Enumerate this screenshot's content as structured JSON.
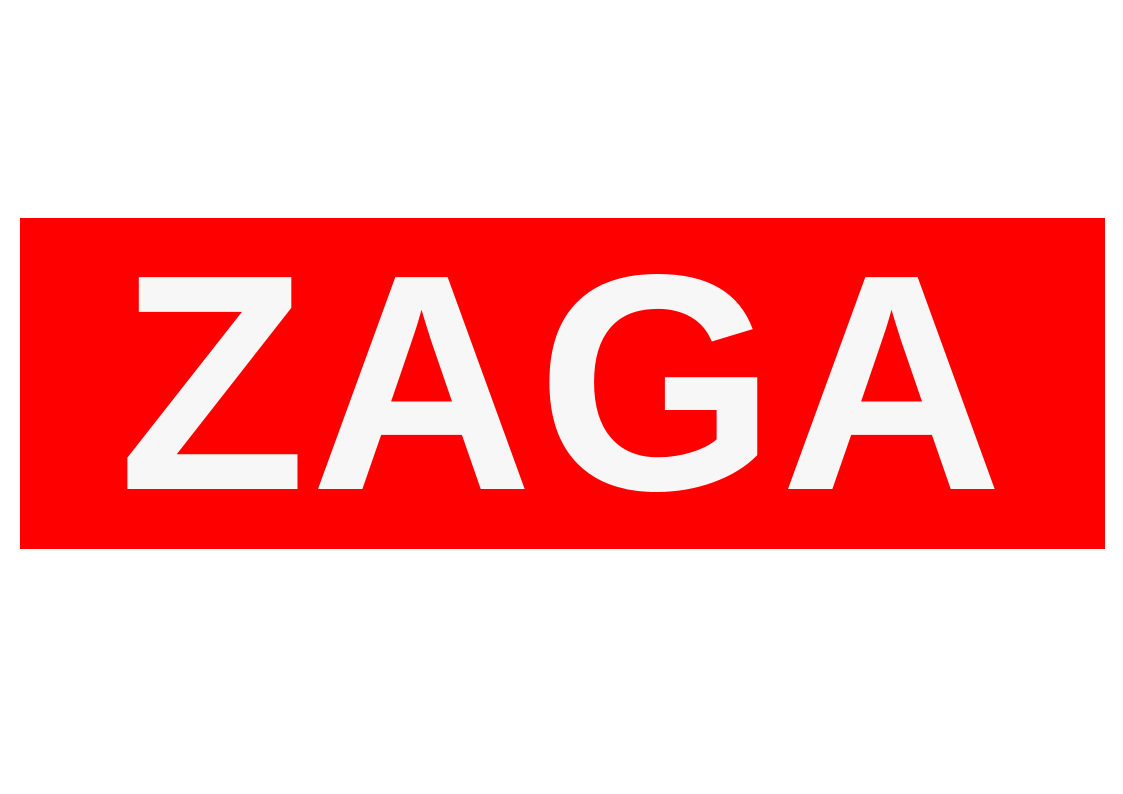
{
  "sign": {
    "text": "ZAGA",
    "background_color": "#ff0000",
    "text_color": "#f7f7f7"
  }
}
